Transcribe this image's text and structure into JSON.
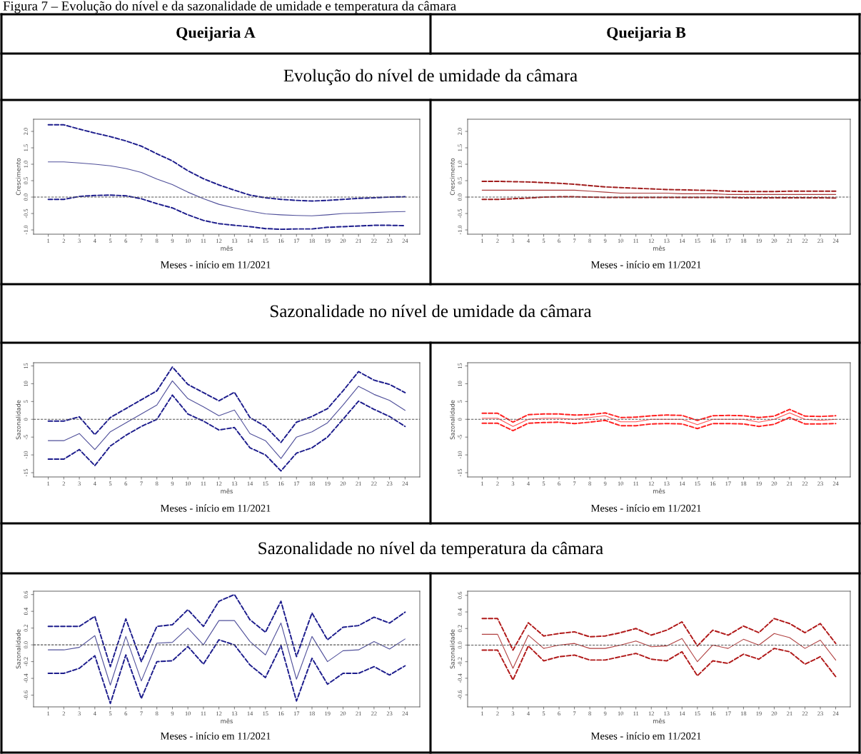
{
  "chart_data": [
    {
      "type": "line",
      "title": "Queijaria A",
      "subtitle": "Evolução do nível de umidade da câmara",
      "xlabel": "mês",
      "ylabel": "Crescimento",
      "annotations": [
        "Meses - início em 11/2021",
        "Figura 7 – Evolução do nível e da sazonalidade de umidade e temperatura da câmara"
      ],
      "x": [
        1,
        2,
        3,
        4,
        5,
        6,
        7,
        8,
        9,
        10,
        11,
        12,
        13,
        14,
        15,
        16,
        17,
        18,
        19,
        20,
        21,
        22,
        23,
        24
      ],
      "xlim": [
        0.05,
        24.95
      ],
      "xticks": [
        1,
        2,
        3,
        4,
        5,
        6,
        7,
        8,
        9,
        10,
        11,
        12,
        13,
        14,
        15,
        16,
        17,
        18,
        19,
        20,
        21,
        22,
        23,
        24
      ],
      "ylim": [
        -1.13,
        2.37
      ],
      "yticks": [
        {
          "value": -1,
          "label": "-1.0"
        },
        {
          "value": -0.5,
          "label": "-0.5"
        },
        {
          "value": 0,
          "label": "0.0"
        },
        {
          "value": 0.5,
          "label": "0.5"
        },
        {
          "value": 1,
          "label": "1.0"
        },
        {
          "value": 1.5,
          "label": "1.5"
        },
        {
          "value": 2,
          "label": "2.0"
        }
      ],
      "grid": false,
      "legend": false,
      "ref_lines": [
        {
          "axis": "y",
          "value": 0,
          "color": "#555555",
          "line_style": "dashed"
        }
      ],
      "series": [
        {
          "color": "#1c1c8c",
          "line_style": "dashed",
          "values": [
            -0.07,
            -0.07,
            0.02,
            0.05,
            0.06,
            0.04,
            -0.05,
            -0.2,
            -0.33,
            -0.54,
            -0.71,
            -0.81,
            -0.86,
            -0.9,
            -0.96,
            -0.98,
            -0.97,
            -0.97,
            -0.92,
            -0.9,
            -0.88,
            -0.86,
            -0.86,
            -0.87
          ]
        },
        {
          "color": "#50509a",
          "line_style": "solid",
          "values": [
            1.07,
            1.07,
            1.04,
            1.0,
            0.95,
            0.87,
            0.75,
            0.55,
            0.38,
            0.15,
            -0.05,
            -0.22,
            -0.33,
            -0.43,
            -0.51,
            -0.54,
            -0.56,
            -0.57,
            -0.54,
            -0.5,
            -0.49,
            -0.47,
            -0.45,
            -0.44
          ]
        },
        {
          "color": "#1c1c8c",
          "line_style": "dashed",
          "values": [
            2.2,
            2.2,
            2.07,
            1.95,
            1.84,
            1.71,
            1.55,
            1.32,
            1.1,
            0.8,
            0.56,
            0.37,
            0.21,
            0.06,
            -0.02,
            -0.07,
            -0.1,
            -0.12,
            -0.1,
            -0.07,
            -0.04,
            -0.02,
            0.0,
            0.01
          ]
        }
      ]
    },
    {
      "type": "line",
      "title": "Queijaria B",
      "xlabel": "mês",
      "ylabel": "Crescimento",
      "annotations": [
        "Meses - início em 11/2021"
      ],
      "x": [
        1,
        2,
        3,
        4,
        5,
        6,
        7,
        8,
        9,
        10,
        11,
        12,
        13,
        14,
        15,
        16,
        17,
        18,
        19,
        20,
        21,
        22,
        23,
        24
      ],
      "xlim": [
        0.05,
        24.95
      ],
      "xticks": [
        1,
        2,
        3,
        4,
        5,
        6,
        7,
        8,
        9,
        10,
        11,
        12,
        13,
        14,
        15,
        16,
        17,
        18,
        19,
        20,
        21,
        22,
        23,
        24
      ],
      "ylim": [
        -1.13,
        2.37
      ],
      "yticks": [
        {
          "value": -1,
          "label": "-1.0"
        },
        {
          "value": -0.5,
          "label": "-0.5"
        },
        {
          "value": 0,
          "label": "0.0"
        },
        {
          "value": 0.5,
          "label": "0.5"
        },
        {
          "value": 1,
          "label": "1.0"
        },
        {
          "value": 1.5,
          "label": "1.5"
        },
        {
          "value": 2,
          "label": "2.0"
        }
      ],
      "grid": false,
      "legend": false,
      "ref_lines": [
        {
          "axis": "y",
          "value": 0,
          "color": "#555555",
          "line_style": "dashed"
        }
      ],
      "series": [
        {
          "color": "#a01c1c",
          "line_style": "dashed",
          "values": [
            -0.07,
            -0.07,
            -0.05,
            -0.03,
            0.0,
            0.01,
            0.01,
            0.0,
            -0.01,
            -0.01,
            -0.01,
            -0.01,
            -0.01,
            -0.01,
            -0.01,
            -0.01,
            -0.01,
            -0.02,
            -0.02,
            -0.02,
            -0.02,
            -0.02,
            -0.02,
            -0.03
          ]
        },
        {
          "color": "#a83a3a",
          "line_style": "solid",
          "values": [
            0.21,
            0.21,
            0.21,
            0.21,
            0.21,
            0.21,
            0.21,
            0.18,
            0.15,
            0.12,
            0.12,
            0.12,
            0.12,
            0.1,
            0.1,
            0.1,
            0.08,
            0.08,
            0.08,
            0.08,
            0.08,
            0.08,
            0.08,
            0.08
          ]
        },
        {
          "color": "#a01c1c",
          "line_style": "dashed",
          "values": [
            0.48,
            0.48,
            0.47,
            0.46,
            0.44,
            0.42,
            0.39,
            0.35,
            0.31,
            0.29,
            0.27,
            0.25,
            0.23,
            0.22,
            0.21,
            0.2,
            0.18,
            0.17,
            0.17,
            0.17,
            0.18,
            0.18,
            0.18,
            0.18
          ]
        }
      ]
    },
    {
      "type": "line",
      "subtitle": "Sazonalidade no nível de umidade da câmara",
      "xlabel": "mês",
      "ylabel": "Sazonalidade",
      "annotations": [
        "Meses - início em 11/2021"
      ],
      "x": [
        1,
        2,
        3,
        4,
        5,
        6,
        7,
        8,
        9,
        10,
        11,
        12,
        13,
        14,
        15,
        16,
        17,
        18,
        19,
        20,
        21,
        22,
        23,
        24
      ],
      "xlim": [
        0.05,
        24.95
      ],
      "xticks": [
        1,
        2,
        3,
        4,
        5,
        6,
        7,
        8,
        9,
        10,
        11,
        12,
        13,
        14,
        15,
        16,
        17,
        18,
        19,
        20,
        21,
        22,
        23,
        24
      ],
      "ylim": [
        -16.2,
        15.9
      ],
      "yticks": [
        -15,
        -10,
        -5,
        0,
        5,
        10,
        15
      ],
      "grid": false,
      "legend": false,
      "ref_lines": [
        {
          "axis": "y",
          "value": 0,
          "color": "#555555",
          "line_style": "dashed"
        }
      ],
      "series": [
        {
          "color": "#1c1c8c",
          "line_style": "dashed",
          "values": [
            -11.2,
            -11.2,
            -8.5,
            -13,
            -7.5,
            -4.5,
            -2,
            0,
            6.8,
            1.5,
            -0.5,
            -3,
            -2.3,
            -8,
            -10,
            -14.5,
            -9.5,
            -8,
            -5,
            0,
            5.1,
            2.8,
            0.8,
            -2
          ]
        },
        {
          "color": "#50509a",
          "line_style": "solid",
          "values": [
            -6,
            -6,
            -4,
            -8.5,
            -3.5,
            -1,
            1.5,
            4,
            10.8,
            5.8,
            3.5,
            1,
            2.6,
            -4,
            -6,
            -11,
            -5,
            -3.5,
            -1,
            4,
            9.3,
            7,
            5.3,
            2.5
          ]
        },
        {
          "color": "#1c1c8c",
          "line_style": "dashed",
          "values": [
            -0.5,
            -0.5,
            0.7,
            -4.3,
            0.5,
            3,
            5.5,
            8,
            14.7,
            9.8,
            7.5,
            5.2,
            7.6,
            0.5,
            -2,
            -6.5,
            -0.8,
            0.8,
            3,
            8,
            13.4,
            11,
            9.8,
            7.5
          ]
        }
      ]
    },
    {
      "type": "line",
      "xlabel": "mês",
      "ylabel": "Sazonalidade",
      "annotations": [
        "Meses - início em 11/2021"
      ],
      "x": [
        1,
        2,
        3,
        4,
        5,
        6,
        7,
        8,
        9,
        10,
        11,
        12,
        13,
        14,
        15,
        16,
        17,
        18,
        19,
        20,
        21,
        22,
        23,
        24
      ],
      "xlim": [
        0.05,
        24.95
      ],
      "xticks": [
        1,
        2,
        3,
        4,
        5,
        6,
        7,
        8,
        9,
        10,
        11,
        12,
        13,
        14,
        15,
        16,
        17,
        18,
        19,
        20,
        21,
        22,
        23,
        24
      ],
      "ylim": [
        -16.2,
        15.9
      ],
      "yticks": [
        -15,
        -10,
        -5,
        0,
        5,
        10,
        15
      ],
      "grid": false,
      "legend": false,
      "ref_lines": [
        {
          "axis": "y",
          "value": 0,
          "color": "#555555",
          "line_style": "dashed"
        }
      ],
      "series": [
        {
          "color": "#ff2020",
          "line_style": "dashed",
          "values": [
            -1.1,
            -1.1,
            -3.2,
            -1.1,
            -0.9,
            -0.8,
            -1.2,
            -0.8,
            -0.3,
            -1.8,
            -1.8,
            -1.3,
            -1.2,
            -1.3,
            -2.6,
            -1.2,
            -1.2,
            -1.3,
            -2,
            -1.4,
            0.5,
            -1.3,
            -1.3,
            -1.2
          ]
        },
        {
          "color": "#ff5050",
          "line_style": "solid",
          "values": [
            0.3,
            0.3,
            -2,
            0,
            0.3,
            0.3,
            0,
            0.5,
            1,
            -0.7,
            -0.7,
            0,
            0,
            0,
            -1.5,
            0,
            0,
            0,
            -0.8,
            0,
            1.8,
            0,
            -0.3,
            0
          ]
        },
        {
          "color": "#ff2020",
          "line_style": "dashed",
          "values": [
            1.7,
            1.7,
            -0.8,
            1.3,
            1.5,
            1.5,
            1.2,
            1.3,
            1.8,
            0.5,
            0.6,
            1,
            1.2,
            1.1,
            -0.3,
            1,
            1.1,
            1,
            0.5,
            0.9,
            2.8,
            0.9,
            0.8,
            1
          ]
        }
      ]
    },
    {
      "type": "line",
      "subtitle": "Sazonalidade no nível da temperatura da câmara",
      "xlabel": "mês",
      "ylabel": "Sazonalidade",
      "annotations": [
        "Meses - início em 11/2021"
      ],
      "x": [
        1,
        2,
        3,
        4,
        5,
        6,
        7,
        8,
        9,
        10,
        11,
        12,
        13,
        14,
        15,
        16,
        17,
        18,
        19,
        20,
        21,
        22,
        23,
        24
      ],
      "xlim": [
        0.05,
        24.95
      ],
      "xticks": [
        1,
        2,
        3,
        4,
        5,
        6,
        7,
        8,
        9,
        10,
        11,
        12,
        13,
        14,
        15,
        16,
        17,
        18,
        19,
        20,
        21,
        22,
        23,
        24
      ],
      "ylim": [
        -0.74,
        0.64
      ],
      "yticks": [
        {
          "value": -0.6,
          "label": "-0.6"
        },
        {
          "value": -0.4,
          "label": "-0.4"
        },
        {
          "value": -0.2,
          "label": "-0.2"
        },
        {
          "value": 0,
          "label": "0.0"
        },
        {
          "value": 0.2,
          "label": "0.2"
        },
        {
          "value": 0.4,
          "label": "0.4"
        },
        {
          "value": 0.6,
          "label": "0.6"
        }
      ],
      "grid": false,
      "legend": false,
      "ref_lines": [
        {
          "axis": "y",
          "value": 0,
          "color": "#555555",
          "line_style": "dashed"
        }
      ],
      "series": [
        {
          "color": "#1c1c8c",
          "line_style": "dashed",
          "values": [
            -0.34,
            -0.34,
            -0.28,
            -0.13,
            -0.7,
            -0.12,
            -0.64,
            -0.2,
            -0.19,
            -0.02,
            -0.23,
            0.06,
            0.0,
            -0.24,
            -0.39,
            -0.01,
            -0.67,
            -0.16,
            -0.47,
            -0.34,
            -0.34,
            -0.26,
            -0.36,
            -0.25
          ]
        },
        {
          "color": "#50509a",
          "line_style": "solid",
          "values": [
            -0.06,
            -0.06,
            -0.03,
            0.11,
            -0.48,
            0.1,
            -0.43,
            0.02,
            0.03,
            0.2,
            0.0,
            0.29,
            0.29,
            0.04,
            -0.12,
            0.26,
            -0.41,
            0.1,
            -0.2,
            -0.07,
            -0.06,
            0.04,
            -0.05,
            0.07
          ]
        },
        {
          "color": "#1c1c8c",
          "line_style": "dashed",
          "values": [
            0.22,
            0.22,
            0.22,
            0.34,
            -0.26,
            0.31,
            -0.2,
            0.22,
            0.24,
            0.42,
            0.22,
            0.52,
            0.6,
            0.3,
            0.15,
            0.52,
            -0.14,
            0.38,
            0.06,
            0.21,
            0.23,
            0.33,
            0.26,
            0.39
          ]
        }
      ]
    },
    {
      "type": "line",
      "xlabel": "mês",
      "ylabel": "Sazonalidade",
      "annotations": [
        "Meses - início em 11/2021"
      ],
      "x": [
        1,
        2,
        3,
        4,
        5,
        6,
        7,
        8,
        9,
        10,
        11,
        12,
        13,
        14,
        15,
        16,
        17,
        18,
        19,
        20,
        21,
        22,
        23,
        24
      ],
      "xlim": [
        0.05,
        24.95
      ],
      "xticks": [
        1,
        2,
        3,
        4,
        5,
        6,
        7,
        8,
        9,
        10,
        11,
        12,
        13,
        14,
        15,
        16,
        17,
        18,
        19,
        20,
        21,
        22,
        23,
        24
      ],
      "ylim": [
        -0.745,
        0.65
      ],
      "yticks": [
        {
          "value": -0.6,
          "label": "-0.6"
        },
        {
          "value": -0.4,
          "label": "-0.4"
        },
        {
          "value": -0.2,
          "label": "-0.2"
        },
        {
          "value": 0,
          "label": "0.0"
        },
        {
          "value": 0.2,
          "label": "0.2"
        },
        {
          "value": 0.4,
          "label": "0.4"
        },
        {
          "value": 0.6,
          "label": "0.6"
        }
      ],
      "grid": false,
      "legend": false,
      "ref_lines": [
        {
          "axis": "y",
          "value": 0,
          "color": "#555555",
          "line_style": "dashed"
        }
      ],
      "series": [
        {
          "color": "#b01818",
          "line_style": "dashed",
          "values": [
            -0.06,
            -0.06,
            -0.42,
            -0.01,
            -0.19,
            -0.14,
            -0.12,
            -0.18,
            -0.18,
            -0.14,
            -0.1,
            -0.17,
            -0.19,
            -0.08,
            -0.37,
            -0.19,
            -0.22,
            -0.11,
            -0.17,
            -0.04,
            -0.08,
            -0.23,
            -0.14,
            -0.38
          ]
        },
        {
          "color": "#b04040",
          "line_style": "solid",
          "values": [
            0.13,
            0.13,
            -0.28,
            0.12,
            -0.04,
            0.0,
            0.02,
            -0.04,
            -0.04,
            0.0,
            0.05,
            -0.02,
            -0.01,
            0.08,
            -0.2,
            0.0,
            -0.04,
            0.07,
            0.0,
            0.14,
            0.09,
            -0.04,
            0.06,
            -0.18
          ]
        },
        {
          "color": "#b01818",
          "line_style": "dashed",
          "values": [
            0.32,
            0.32,
            -0.06,
            0.27,
            0.11,
            0.14,
            0.16,
            0.1,
            0.11,
            0.15,
            0.2,
            0.12,
            0.18,
            0.28,
            -0.01,
            0.18,
            0.12,
            0.23,
            0.15,
            0.32,
            0.26,
            0.15,
            0.26,
            0.02
          ]
        }
      ]
    }
  ]
}
